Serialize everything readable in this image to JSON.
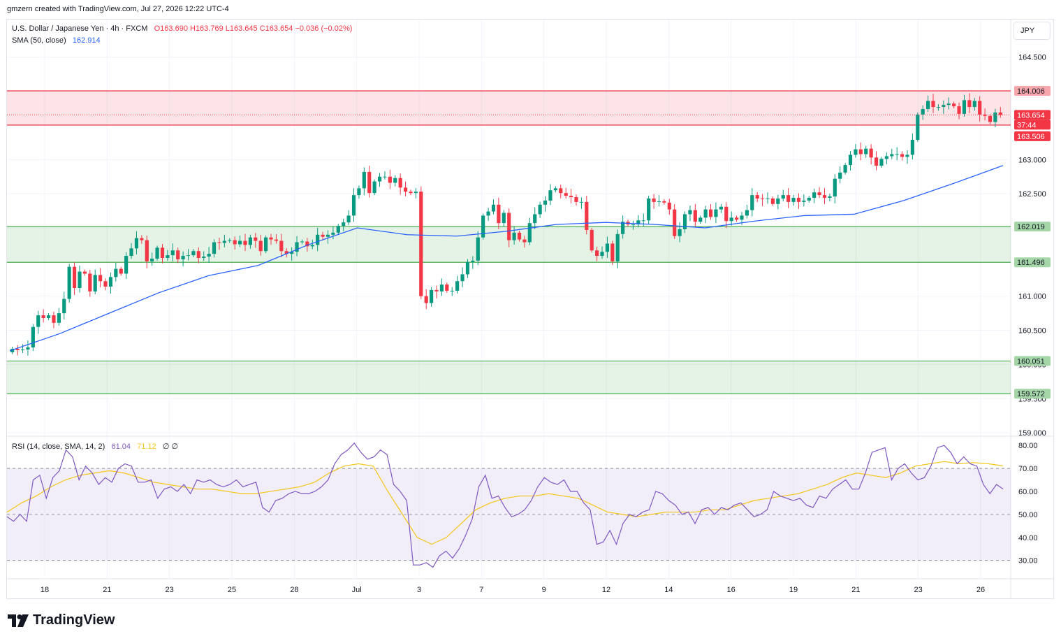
{
  "header": {
    "credit": "gmzern created with TradingView.com, Jul 27, 2026 12:22 UTC-4"
  },
  "legend": {
    "title": "U.S. Dollar / Japanese Yen · 4h · FXCM",
    "ohlc": "O163.690  H163.769  L163.645  C163.654  −0.036 (−0.02%)",
    "sma_label": "SMA (50, close)",
    "sma_value": "162.914"
  },
  "rsi_legend": {
    "label": "RSI (14, close, SMA, 14, 2)",
    "rsi_value": "61.04",
    "sma_value": "71.12",
    "extra": "∅ ∅"
  },
  "currency": "JPY",
  "footer": {
    "brand": "TradingView"
  },
  "colors": {
    "up": "#089981",
    "down": "#f23645",
    "sma": "#2962ff",
    "rsi": "#7e57c2",
    "rsi_ma": "#f5c518",
    "support": "#4caf50",
    "resistance": "#f23645"
  },
  "chart_data": {
    "type": "candlestick",
    "symbol": "USDJPY",
    "timeframe": "4h",
    "price_axis_ticks": [
      "164.500",
      "164.000",
      "163.500",
      "163.000",
      "162.500",
      "162.000",
      "161.500",
      "161.000",
      "160.500",
      "160.000",
      "159.500",
      "159.000"
    ],
    "ylim": [
      158.95,
      165.05
    ],
    "x_tick_labels": [
      "18",
      "21",
      "23",
      "25",
      "28",
      "Jul",
      "3",
      "7",
      "9",
      "12",
      "14",
      "16",
      "19",
      "21",
      "23",
      "26"
    ],
    "price_tags": [
      {
        "label": "164.006",
        "type": "resistance"
      },
      {
        "label": "163.654",
        "type": "last"
      },
      {
        "label": "37:44",
        "type": "countdown"
      },
      {
        "label": "163.506",
        "type": "resistance"
      },
      {
        "label": "162.019",
        "type": "support"
      },
      {
        "label": "161.496",
        "type": "support"
      },
      {
        "label": "160.051",
        "type": "support"
      },
      {
        "label": "159.572",
        "type": "support"
      }
    ],
    "zones": [
      {
        "type": "resistance",
        "low": 163.506,
        "high": 164.006
      },
      {
        "type": "support",
        "low": 161.496,
        "high": 162.019
      },
      {
        "type": "support",
        "low": 159.572,
        "high": 160.051
      }
    ],
    "last_price": 163.654,
    "close_series": [
      160.23,
      160.21,
      160.22,
      160.25,
      160.55,
      160.72,
      160.68,
      160.72,
      160.61,
      160.75,
      160.96,
      161.43,
      161.12,
      161.36,
      161.33,
      161.07,
      161.31,
      161.22,
      161.14,
      161.28,
      161.4,
      161.33,
      161.59,
      161.7,
      161.85,
      161.82,
      161.51,
      161.55,
      161.71,
      161.56,
      161.6,
      161.67,
      161.54,
      161.59,
      161.6,
      161.66,
      161.56,
      161.58,
      161.62,
      161.79,
      161.78,
      161.81,
      161.82,
      161.76,
      161.81,
      161.75,
      161.86,
      161.81,
      161.66,
      161.86,
      161.83,
      161.81,
      161.66,
      161.62,
      161.65,
      161.79,
      161.8,
      161.73,
      161.75,
      161.9,
      161.87,
      161.9,
      161.93,
      162.03,
      162.08,
      162.18,
      162.48,
      162.58,
      162.82,
      162.51,
      162.68,
      162.75,
      162.75,
      162.66,
      162.73,
      162.59,
      162.53,
      162.51,
      162.53,
      161.0,
      160.9,
      161.09,
      161.07,
      161.17,
      161.08,
      161.08,
      161.22,
      161.32,
      161.5,
      161.52,
      161.86,
      162.18,
      162.24,
      162.34,
      162.07,
      162.22,
      161.82,
      161.93,
      161.83,
      161.79,
      162.07,
      162.2,
      162.34,
      162.4,
      162.55,
      162.58,
      162.51,
      162.47,
      162.45,
      162.38,
      162.38,
      161.97,
      161.67,
      161.59,
      161.65,
      161.77,
      161.51,
      161.91,
      162.09,
      162.05,
      162.05,
      162.11,
      162.11,
      162.43,
      162.38,
      162.39,
      162.37,
      162.27,
      161.88,
      161.98,
      162.2,
      162.26,
      162.09,
      162.15,
      162.27,
      162.16,
      162.27,
      162.31,
      162.1,
      162.15,
      162.12,
      162.18,
      162.26,
      162.48,
      162.43,
      162.42,
      162.43,
      162.35,
      162.43,
      162.48,
      162.38,
      162.44,
      162.38,
      162.4,
      162.44,
      162.52,
      162.48,
      162.44,
      162.46,
      162.72,
      162.81,
      162.92,
      163.07,
      163.15,
      163.08,
      163.16,
      163.03,
      162.91,
      163.01,
      163.05,
      163.08,
      163.08,
      163.04,
      163.07,
      163.29,
      163.66,
      163.74,
      163.86,
      163.77,
      163.77,
      163.8,
      163.82,
      163.78,
      163.67,
      163.87,
      163.77,
      163.86,
      163.66,
      163.64,
      163.55,
      163.69,
      163.654
    ],
    "sma50_series": [
      160.2,
      160.45,
      160.75,
      161.05,
      161.3,
      161.45,
      161.75,
      162.0,
      161.9,
      161.88,
      161.95,
      162.05,
      162.08,
      162.05,
      162.0,
      162.1,
      162.18,
      162.2,
      162.4,
      162.65,
      162.913
    ],
    "rsi": {
      "axis_ticks": [
        "80.00",
        "70.00",
        "60.00",
        "50.00",
        "40.00",
        "30.00"
      ],
      "ylim": [
        22,
        84
      ],
      "bands": [
        30,
        70
      ],
      "rsi_series": [
        49,
        47,
        50,
        47,
        65,
        67,
        57,
        66,
        69,
        78,
        75,
        65,
        71,
        68,
        63,
        66,
        64,
        70,
        72,
        71,
        64,
        64,
        65,
        57,
        61,
        62,
        60,
        63,
        59,
        65,
        64,
        65,
        63,
        62,
        63,
        65,
        62,
        63,
        64,
        53,
        51,
        56,
        57,
        59,
        60,
        59,
        59,
        60,
        62,
        65,
        72,
        76,
        78,
        81,
        77,
        74,
        75,
        78,
        76,
        63,
        60,
        56,
        28,
        28,
        29,
        27,
        32,
        34,
        31,
        35,
        41,
        48,
        62,
        67,
        57,
        58,
        53,
        49,
        50,
        52,
        56,
        62,
        66,
        64,
        63,
        65,
        60,
        60,
        55,
        52,
        37,
        38,
        43,
        37,
        46,
        50,
        49,
        51,
        52,
        60,
        59,
        56,
        54,
        50,
        51,
        46,
        52,
        53,
        50,
        53,
        52,
        54,
        55,
        52,
        49,
        50,
        52,
        60,
        58,
        57,
        56,
        57,
        54,
        53,
        58,
        57,
        61,
        63,
        65,
        61,
        61,
        68,
        77,
        78,
        79,
        65,
        70,
        72,
        68,
        65,
        66,
        71,
        79,
        80,
        77,
        72,
        75,
        72,
        71,
        63,
        59,
        63,
        61.04
      ],
      "rsi_ma_series": [
        51,
        55,
        58,
        62,
        65,
        67,
        68,
        69,
        68,
        66,
        64,
        63,
        62,
        61,
        61,
        60,
        59,
        59,
        60,
        61,
        62,
        64,
        68,
        71,
        72,
        71,
        60,
        50,
        40,
        37,
        40,
        46,
        52,
        55,
        57,
        58,
        58,
        59,
        58,
        57,
        54,
        51,
        50,
        49,
        50,
        51,
        51,
        51,
        52,
        52,
        54,
        56,
        57,
        58,
        59,
        61,
        63,
        66,
        68,
        67,
        66,
        68,
        71,
        72,
        73,
        72,
        72.5,
        72,
        71.12
      ]
    }
  }
}
